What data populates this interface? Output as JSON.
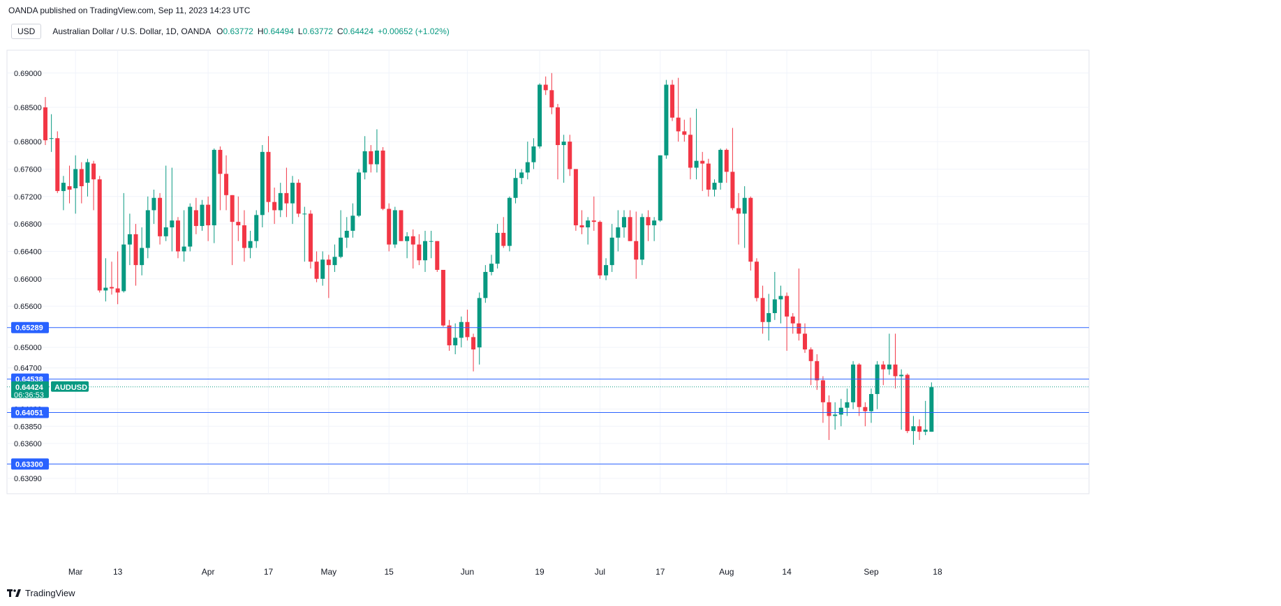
{
  "header": {
    "publisher": "OANDA published on TradingView.com, Sep 11, 2023 14:23 UTC",
    "currency": "USD",
    "symbol": "Australian Dollar / U.S. Dollar, 1D, OANDA",
    "o_label": "O",
    "o": "0.63772",
    "h_label": "H",
    "h": "0.64494",
    "l_label": "L",
    "l": "0.63772",
    "c_label": "C",
    "c": "0.64424",
    "change": "+0.00652 (+1.02%)"
  },
  "footer": {
    "brand": "TradingView"
  },
  "colors": {
    "up": "#089981",
    "down": "#f23645",
    "line": "#2962ff",
    "grid": "#f0f3fa",
    "axis_text": "#131722"
  },
  "chart_data": {
    "type": "candlestick",
    "ylim": [
      0.6309,
      0.6915
    ],
    "y_ticks": [
      "0.63090",
      "0.63300",
      "0.63600",
      "0.63850",
      "0.64100",
      "0.64700",
      "0.65000",
      "0.65600",
      "0.66000",
      "0.66400",
      "0.66800",
      "0.67200",
      "0.67600",
      "0.68000",
      "0.68500",
      "0.69000"
    ],
    "x_ticks": [
      {
        "label": "Mar",
        "i": 5
      },
      {
        "label": "13",
        "i": 12
      },
      {
        "label": "Apr",
        "i": 27
      },
      {
        "label": "17",
        "i": 37
      },
      {
        "label": "May",
        "i": 47
      },
      {
        "label": "15",
        "i": 57
      },
      {
        "label": "Jun",
        "i": 70
      },
      {
        "label": "19",
        "i": 82
      },
      {
        "label": "Jul",
        "i": 92
      },
      {
        "label": "17",
        "i": 102
      },
      {
        "label": "Aug",
        "i": 113
      },
      {
        "label": "14",
        "i": 123
      },
      {
        "label": "Sep",
        "i": 137
      },
      {
        "label": "18",
        "i": 148
      }
    ],
    "horizontal_lines": [
      {
        "value": 0.65289,
        "label": "0.65289"
      },
      {
        "value": 0.64538,
        "label": "0.64538"
      },
      {
        "value": 0.64051,
        "label": "0.64051"
      },
      {
        "value": 0.633,
        "label": "0.63300"
      }
    ],
    "last_price": {
      "value": 0.64424,
      "label": "0.64424",
      "symbol": "AUDUSD",
      "countdown": "06:36:53"
    },
    "candles": [
      [
        0.685,
        0.6865,
        0.6795,
        0.6802
      ],
      [
        0.6805,
        0.684,
        0.6785,
        0.6805
      ],
      [
        0.6805,
        0.6815,
        0.6725,
        0.6728
      ],
      [
        0.6728,
        0.675,
        0.67,
        0.674
      ],
      [
        0.6735,
        0.6765,
        0.671,
        0.673
      ],
      [
        0.6732,
        0.678,
        0.6695,
        0.676
      ],
      [
        0.676,
        0.677,
        0.671,
        0.6735
      ],
      [
        0.674,
        0.6775,
        0.672,
        0.677
      ],
      [
        0.6768,
        0.6772,
        0.67,
        0.6745
      ],
      [
        0.6745,
        0.675,
        0.658,
        0.6583
      ],
      [
        0.6583,
        0.663,
        0.6567,
        0.6587
      ],
      [
        0.6588,
        0.6625,
        0.6577,
        0.6586
      ],
      [
        0.6586,
        0.664,
        0.6563,
        0.658
      ],
      [
        0.6582,
        0.6725,
        0.658,
        0.665
      ],
      [
        0.665,
        0.6695,
        0.662,
        0.6665
      ],
      [
        0.6665,
        0.668,
        0.659,
        0.662
      ],
      [
        0.662,
        0.6675,
        0.6605,
        0.6645
      ],
      [
        0.6645,
        0.672,
        0.663,
        0.67
      ],
      [
        0.67,
        0.673,
        0.668,
        0.6718
      ],
      [
        0.6718,
        0.6725,
        0.665,
        0.6662
      ],
      [
        0.6662,
        0.6765,
        0.6655,
        0.6675
      ],
      [
        0.6675,
        0.6762,
        0.664,
        0.6685
      ],
      [
        0.6685,
        0.669,
        0.663,
        0.664
      ],
      [
        0.664,
        0.67,
        0.6625,
        0.6647
      ],
      [
        0.6647,
        0.671,
        0.664,
        0.6705
      ],
      [
        0.67,
        0.6718,
        0.6665,
        0.6677
      ],
      [
        0.6677,
        0.6715,
        0.667,
        0.6708
      ],
      [
        0.6708,
        0.672,
        0.6655,
        0.6678
      ],
      [
        0.6678,
        0.679,
        0.6652,
        0.6788
      ],
      [
        0.6788,
        0.6793,
        0.67,
        0.6753
      ],
      [
        0.6753,
        0.678,
        0.67,
        0.6722
      ],
      [
        0.6722,
        0.6722,
        0.662,
        0.6683
      ],
      [
        0.6683,
        0.672,
        0.6655,
        0.6678
      ],
      [
        0.6678,
        0.67,
        0.6625,
        0.6645
      ],
      [
        0.6645,
        0.667,
        0.663,
        0.6655
      ],
      [
        0.6655,
        0.67,
        0.6645,
        0.6693
      ],
      [
        0.6693,
        0.6795,
        0.6675,
        0.6785
      ],
      [
        0.6785,
        0.6808,
        0.6697,
        0.6712
      ],
      [
        0.6712,
        0.6733,
        0.668,
        0.67
      ],
      [
        0.67,
        0.674,
        0.669,
        0.6725
      ],
      [
        0.6725,
        0.6762,
        0.669,
        0.671
      ],
      [
        0.671,
        0.675,
        0.668,
        0.674
      ],
      [
        0.674,
        0.6745,
        0.669,
        0.6695
      ],
      [
        0.6695,
        0.6705,
        0.6625,
        0.6695
      ],
      [
        0.6695,
        0.67,
        0.6615,
        0.6625
      ],
      [
        0.6625,
        0.664,
        0.6595,
        0.66
      ],
      [
        0.66,
        0.664,
        0.659,
        0.6628
      ],
      [
        0.6628,
        0.6635,
        0.6572,
        0.662
      ],
      [
        0.662,
        0.665,
        0.661,
        0.6632
      ],
      [
        0.6632,
        0.67,
        0.663,
        0.666
      ],
      [
        0.666,
        0.669,
        0.6645,
        0.667
      ],
      [
        0.667,
        0.671,
        0.666,
        0.6692
      ],
      [
        0.6692,
        0.676,
        0.669,
        0.6755
      ],
      [
        0.6755,
        0.6808,
        0.6745,
        0.6786
      ],
      [
        0.6786,
        0.6795,
        0.6755,
        0.6767
      ],
      [
        0.6767,
        0.6818,
        0.6755,
        0.6787
      ],
      [
        0.6787,
        0.6792,
        0.67,
        0.6702
      ],
      [
        0.6702,
        0.671,
        0.664,
        0.665
      ],
      [
        0.665,
        0.6705,
        0.6645,
        0.67
      ],
      [
        0.67,
        0.67,
        0.6655,
        0.6655
      ],
      [
        0.6655,
        0.6668,
        0.663,
        0.6662
      ],
      [
        0.6662,
        0.6672,
        0.6615,
        0.665
      ],
      [
        0.665,
        0.6665,
        0.662,
        0.6627
      ],
      [
        0.6627,
        0.667,
        0.661,
        0.6655
      ],
      [
        0.6655,
        0.667,
        0.663,
        0.6655
      ],
      [
        0.6655,
        0.6655,
        0.661,
        0.6613
      ],
      [
        0.6613,
        0.6613,
        0.653,
        0.6532
      ],
      [
        0.6532,
        0.654,
        0.6495,
        0.6503
      ],
      [
        0.6503,
        0.6535,
        0.649,
        0.6514
      ],
      [
        0.6514,
        0.6545,
        0.65,
        0.6537
      ],
      [
        0.6537,
        0.6555,
        0.651,
        0.6515
      ],
      [
        0.6515,
        0.652,
        0.6465,
        0.6497
      ],
      [
        0.65,
        0.658,
        0.6475,
        0.6572
      ],
      [
        0.6572,
        0.662,
        0.6565,
        0.661
      ],
      [
        0.661,
        0.6635,
        0.6605,
        0.6622
      ],
      [
        0.6622,
        0.668,
        0.6615,
        0.6667
      ],
      [
        0.6667,
        0.669,
        0.6645,
        0.6648
      ],
      [
        0.6648,
        0.672,
        0.664,
        0.6718
      ],
      [
        0.6718,
        0.676,
        0.671,
        0.6747
      ],
      [
        0.6747,
        0.676,
        0.6738,
        0.6755
      ],
      [
        0.6755,
        0.68,
        0.6745,
        0.677
      ],
      [
        0.677,
        0.6805,
        0.676,
        0.6793
      ],
      [
        0.6793,
        0.6885,
        0.679,
        0.6883
      ],
      [
        0.6883,
        0.6895,
        0.6868,
        0.6875
      ],
      [
        0.6875,
        0.69,
        0.684,
        0.685
      ],
      [
        0.685,
        0.6855,
        0.6745,
        0.6795
      ],
      [
        0.6795,
        0.681,
        0.674,
        0.68
      ],
      [
        0.68,
        0.681,
        0.675,
        0.676
      ],
      [
        0.676,
        0.676,
        0.667,
        0.6678
      ],
      [
        0.6678,
        0.67,
        0.6665,
        0.6675
      ],
      [
        0.6675,
        0.669,
        0.665,
        0.6685
      ],
      [
        0.6685,
        0.672,
        0.667,
        0.6683
      ],
      [
        0.6683,
        0.6685,
        0.66,
        0.6605
      ],
      [
        0.6605,
        0.663,
        0.6598,
        0.662
      ],
      [
        0.662,
        0.668,
        0.661,
        0.666
      ],
      [
        0.666,
        0.67,
        0.664,
        0.6675
      ],
      [
        0.6675,
        0.67,
        0.666,
        0.669
      ],
      [
        0.669,
        0.67,
        0.6655,
        0.6655
      ],
      [
        0.6655,
        0.6698,
        0.66,
        0.6628
      ],
      [
        0.6628,
        0.6695,
        0.662,
        0.669
      ],
      [
        0.669,
        0.67,
        0.6655,
        0.6678
      ],
      [
        0.6678,
        0.669,
        0.6655,
        0.6685
      ],
      [
        0.6685,
        0.678,
        0.6683,
        0.678
      ],
      [
        0.678,
        0.689,
        0.6775,
        0.6883
      ],
      [
        0.6883,
        0.689,
        0.683,
        0.6835
      ],
      [
        0.6835,
        0.6893,
        0.68,
        0.6815
      ],
      [
        0.6815,
        0.6832,
        0.68,
        0.681
      ],
      [
        0.681,
        0.6835,
        0.6745,
        0.6762
      ],
      [
        0.6762,
        0.6848,
        0.6745,
        0.6772
      ],
      [
        0.6772,
        0.6785,
        0.6728,
        0.6768
      ],
      [
        0.6768,
        0.6775,
        0.672,
        0.673
      ],
      [
        0.673,
        0.6745,
        0.672,
        0.674
      ],
      [
        0.674,
        0.679,
        0.673,
        0.6788
      ],
      [
        0.6788,
        0.679,
        0.674,
        0.6756
      ],
      [
        0.6756,
        0.682,
        0.67,
        0.6703
      ],
      [
        0.6703,
        0.6725,
        0.665,
        0.6695
      ],
      [
        0.6695,
        0.6735,
        0.6645,
        0.6718
      ],
      [
        0.6718,
        0.672,
        0.6612,
        0.6625
      ],
      [
        0.6625,
        0.663,
        0.6567,
        0.6572
      ],
      [
        0.6572,
        0.659,
        0.652,
        0.6537
      ],
      [
        0.6537,
        0.6578,
        0.651,
        0.655
      ],
      [
        0.655,
        0.661,
        0.654,
        0.657
      ],
      [
        0.657,
        0.659,
        0.6535,
        0.6575
      ],
      [
        0.6575,
        0.658,
        0.6495,
        0.6545
      ],
      [
        0.6545,
        0.655,
        0.652,
        0.6535
      ],
      [
        0.6535,
        0.6615,
        0.651,
        0.652
      ],
      [
        0.652,
        0.6535,
        0.6492,
        0.6497
      ],
      [
        0.6497,
        0.65,
        0.6445,
        0.648
      ],
      [
        0.648,
        0.649,
        0.6438,
        0.6452
      ],
      [
        0.6452,
        0.6458,
        0.639,
        0.642
      ],
      [
        0.642,
        0.643,
        0.6365,
        0.64
      ],
      [
        0.64,
        0.642,
        0.638,
        0.6402
      ],
      [
        0.6402,
        0.6425,
        0.6385,
        0.6412
      ],
      [
        0.6412,
        0.644,
        0.64,
        0.642
      ],
      [
        0.642,
        0.648,
        0.641,
        0.6475
      ],
      [
        0.6475,
        0.6477,
        0.64,
        0.6413
      ],
      [
        0.6413,
        0.642,
        0.6385,
        0.6407
      ],
      [
        0.6407,
        0.644,
        0.639,
        0.6432
      ],
      [
        0.6432,
        0.648,
        0.641,
        0.6475
      ],
      [
        0.6475,
        0.648,
        0.6445,
        0.6468
      ],
      [
        0.6468,
        0.652,
        0.646,
        0.6475
      ],
      [
        0.6475,
        0.652,
        0.644,
        0.6458
      ],
      [
        0.6458,
        0.6468,
        0.638,
        0.646
      ],
      [
        0.646,
        0.6462,
        0.6375,
        0.6378
      ],
      [
        0.6378,
        0.64,
        0.6358,
        0.6385
      ],
      [
        0.6385,
        0.6395,
        0.6365,
        0.6377
      ],
      [
        0.6377,
        0.6422,
        0.6372,
        0.638
      ],
      [
        0.6377,
        0.6449,
        0.6377,
        0.6442
      ]
    ]
  }
}
